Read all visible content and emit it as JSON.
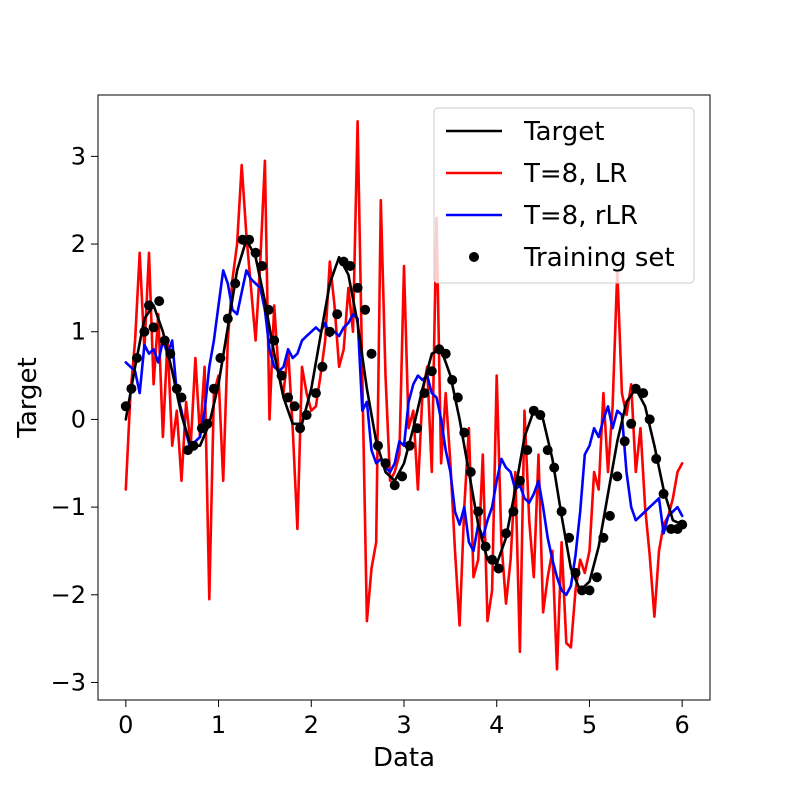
{
  "chart_data": {
    "type": "line",
    "title": "",
    "xlabel": "Data",
    "ylabel": "Target",
    "xlim": [
      -0.3,
      6.3
    ],
    "ylim": [
      -3.2,
      3.7
    ],
    "xticks": [
      0,
      1,
      2,
      3,
      4,
      5,
      6
    ],
    "yticks": [
      -3,
      -2,
      -1,
      0,
      1,
      2,
      3
    ],
    "xtick_labels": [
      "0",
      "1",
      "2",
      "3",
      "4",
      "5",
      "6"
    ],
    "ytick_labels": [
      "−3",
      "−2",
      "−1",
      "0",
      "1",
      "2",
      "3"
    ],
    "grid": false,
    "legend_position": "top-right",
    "series": [
      {
        "name": "Target",
        "kind": "line",
        "color": "#000000",
        "x": [
          0,
          0.1,
          0.2,
          0.3,
          0.4,
          0.5,
          0.6,
          0.7,
          0.8,
          0.9,
          1.0,
          1.1,
          1.2,
          1.3,
          1.4,
          1.5,
          1.6,
          1.7,
          1.8,
          1.9,
          2.0,
          2.1,
          2.2,
          2.3,
          2.4,
          2.5,
          2.6,
          2.7,
          2.8,
          2.9,
          3.0,
          3.1,
          3.2,
          3.3,
          3.4,
          3.5,
          3.6,
          3.7,
          3.8,
          3.9,
          4.0,
          4.1,
          4.2,
          4.3,
          4.4,
          4.5,
          4.6,
          4.7,
          4.8,
          4.9,
          5.0,
          5.1,
          5.2,
          5.3,
          5.4,
          5.5,
          5.6,
          5.7,
          5.8,
          5.9,
          6.0
        ],
        "y": [
          0.0,
          0.6,
          1.15,
          1.3,
          1.0,
          0.55,
          0.05,
          -0.3,
          -0.3,
          -0.05,
          0.4,
          1.05,
          1.7,
          2.05,
          1.85,
          1.35,
          0.75,
          0.25,
          -0.05,
          -0.05,
          0.35,
          0.95,
          1.55,
          1.85,
          1.65,
          1.1,
          0.35,
          -0.25,
          -0.6,
          -0.7,
          -0.5,
          -0.1,
          0.35,
          0.75,
          0.8,
          0.5,
          0.0,
          -0.6,
          -1.2,
          -1.6,
          -1.65,
          -1.35,
          -0.8,
          -0.2,
          0.1,
          0.0,
          -0.45,
          -1.1,
          -1.7,
          -1.95,
          -1.85,
          -1.45,
          -0.85,
          -0.25,
          0.2,
          0.35,
          0.15,
          -0.3,
          -0.8,
          -1.15,
          -1.2
        ]
      },
      {
        "name": "T=8, LR",
        "kind": "line",
        "color": "#ff0000",
        "x": [
          0,
          0.05,
          0.1,
          0.15,
          0.2,
          0.25,
          0.3,
          0.35,
          0.4,
          0.45,
          0.5,
          0.55,
          0.6,
          0.65,
          0.7,
          0.75,
          0.8,
          0.85,
          0.9,
          0.95,
          1.0,
          1.05,
          1.1,
          1.15,
          1.2,
          1.25,
          1.3,
          1.35,
          1.4,
          1.45,
          1.5,
          1.55,
          1.6,
          1.65,
          1.7,
          1.75,
          1.8,
          1.85,
          1.9,
          1.95,
          2.0,
          2.05,
          2.1,
          2.15,
          2.2,
          2.25,
          2.3,
          2.35,
          2.4,
          2.45,
          2.5,
          2.55,
          2.6,
          2.65,
          2.7,
          2.75,
          2.8,
          2.85,
          2.9,
          2.95,
          3.0,
          3.05,
          3.1,
          3.15,
          3.2,
          3.25,
          3.3,
          3.35,
          3.4,
          3.45,
          3.5,
          3.55,
          3.6,
          3.65,
          3.7,
          3.75,
          3.8,
          3.85,
          3.9,
          3.95,
          4.0,
          4.05,
          4.1,
          4.15,
          4.2,
          4.25,
          4.3,
          4.35,
          4.4,
          4.45,
          4.5,
          4.55,
          4.6,
          4.65,
          4.7,
          4.75,
          4.8,
          4.85,
          4.9,
          4.95,
          5.0,
          5.05,
          5.1,
          5.15,
          5.2,
          5.25,
          5.3,
          5.35,
          5.4,
          5.45,
          5.5,
          5.55,
          5.6,
          5.65,
          5.7,
          5.75,
          5.8,
          5.85,
          5.9,
          5.95,
          6.0
        ],
        "y": [
          -0.8,
          0.3,
          0.9,
          1.9,
          0.8,
          1.9,
          0.4,
          1.2,
          -0.2,
          0.9,
          -0.3,
          0.1,
          -0.7,
          0.2,
          -0.3,
          0.7,
          -0.2,
          0.6,
          -2.05,
          0.3,
          0.5,
          -0.7,
          0.9,
          1.6,
          2.0,
          2.9,
          2.1,
          1.5,
          0.9,
          1.8,
          2.95,
          0.0,
          1.3,
          0.5,
          0.3,
          0.8,
          -0.1,
          -1.25,
          0.6,
          0.3,
          0.1,
          0.15,
          0.5,
          0.9,
          1.8,
          1.3,
          0.6,
          0.8,
          1.5,
          1.0,
          3.4,
          0.5,
          -2.3,
          -1.7,
          -1.4,
          2.5,
          0.5,
          -0.7,
          -0.6,
          -0.4,
          1.75,
          -0.1,
          0.1,
          -0.8,
          0.3,
          0.6,
          -0.6,
          2.3,
          -0.5,
          0.3,
          -0.5,
          -1.5,
          -2.35,
          -1.0,
          -0.1,
          -1.8,
          -1.6,
          -0.4,
          -2.3,
          -1.95,
          0.5,
          -1.4,
          -2.1,
          -1.6,
          -0.6,
          -2.65,
          0.1,
          -1.15,
          -1.8,
          -0.4,
          -2.2,
          -1.8,
          -1.5,
          -2.85,
          -1.4,
          -2.55,
          -2.6,
          -1.95,
          -1.6,
          -1.75,
          -1.5,
          -0.6,
          -0.8,
          0.3,
          -0.6,
          0.15,
          1.7,
          0.3,
          0.05,
          0.4,
          -0.6,
          -0.1,
          -1.0,
          -1.55,
          -2.25,
          -1.5,
          -1.2,
          -1.1,
          -0.9,
          -0.6,
          -0.5
        ]
      },
      {
        "name": "T=8, rLR",
        "kind": "line",
        "color": "#0000ff",
        "x": [
          0,
          0.05,
          0.1,
          0.15,
          0.2,
          0.25,
          0.3,
          0.35,
          0.4,
          0.45,
          0.5,
          0.55,
          0.6,
          0.65,
          0.7,
          0.75,
          0.8,
          0.85,
          0.9,
          0.95,
          1.0,
          1.05,
          1.1,
          1.15,
          1.2,
          1.25,
          1.3,
          1.35,
          1.4,
          1.45,
          1.5,
          1.55,
          1.6,
          1.65,
          1.7,
          1.75,
          1.8,
          1.85,
          1.9,
          1.95,
          2.0,
          2.05,
          2.1,
          2.15,
          2.2,
          2.25,
          2.3,
          2.35,
          2.4,
          2.45,
          2.5,
          2.55,
          2.6,
          2.65,
          2.7,
          2.75,
          2.8,
          2.85,
          2.9,
          2.95,
          3.0,
          3.05,
          3.1,
          3.15,
          3.2,
          3.25,
          3.3,
          3.35,
          3.4,
          3.45,
          3.5,
          3.55,
          3.6,
          3.65,
          3.7,
          3.75,
          3.8,
          3.85,
          3.9,
          3.95,
          4.0,
          4.05,
          4.1,
          4.15,
          4.2,
          4.25,
          4.3,
          4.35,
          4.4,
          4.45,
          4.5,
          4.55,
          4.6,
          4.65,
          4.7,
          4.75,
          4.8,
          4.85,
          4.9,
          4.95,
          5.0,
          5.05,
          5.1,
          5.15,
          5.2,
          5.25,
          5.3,
          5.35,
          5.4,
          5.45,
          5.5,
          5.55,
          5.6,
          5.65,
          5.7,
          5.75,
          5.8,
          5.85,
          5.9,
          5.95,
          6.0
        ],
        "y": [
          0.65,
          0.6,
          0.55,
          0.3,
          0.85,
          0.75,
          0.8,
          0.65,
          0.9,
          0.75,
          0.9,
          0.3,
          0.1,
          -0.15,
          -0.35,
          -0.25,
          -0.2,
          0.1,
          0.6,
          0.9,
          1.3,
          1.7,
          1.55,
          1.25,
          1.2,
          1.45,
          1.7,
          1.6,
          1.55,
          1.5,
          1.25,
          0.8,
          0.6,
          0.55,
          0.6,
          0.8,
          0.7,
          0.75,
          0.9,
          0.95,
          1.0,
          1.05,
          1.0,
          1.1,
          0.95,
          1.0,
          0.95,
          1.05,
          1.1,
          1.2,
          1.15,
          0.1,
          0.2,
          -0.35,
          -0.5,
          -0.45,
          -0.55,
          -0.6,
          -0.5,
          -0.25,
          -0.3,
          0.2,
          0.4,
          0.5,
          0.45,
          0.5,
          0.3,
          0.25,
          0.0,
          -0.35,
          -0.6,
          -1.05,
          -1.2,
          -1.0,
          -1.4,
          -1.5,
          -1.2,
          -1.35,
          -1.15,
          -1.0,
          -0.7,
          -0.45,
          -0.55,
          -0.6,
          -0.8,
          -0.75,
          -0.9,
          -0.95,
          -0.85,
          -0.7,
          -1.0,
          -1.35,
          -1.6,
          -1.8,
          -1.95,
          -2.0,
          -1.9,
          -1.55,
          -1.05,
          -0.4,
          -0.3,
          -0.1,
          -0.2,
          0.0,
          0.15,
          -0.1,
          0.1,
          0.05,
          -0.6,
          -1.0,
          -1.15,
          -1.1,
          -1.05,
          -1.0,
          -0.95,
          -0.9,
          -1.3,
          -1.1,
          -1.05,
          -1.0,
          -1.1
        ]
      }
    ],
    "scatter": {
      "name": "Training set",
      "color": "#000000",
      "x": [
        0.0,
        0.06,
        0.12,
        0.2,
        0.25,
        0.3,
        0.36,
        0.42,
        0.48,
        0.55,
        0.6,
        0.67,
        0.73,
        0.82,
        0.88,
        0.95,
        1.02,
        1.1,
        1.18,
        1.26,
        1.33,
        1.4,
        1.47,
        1.54,
        1.6,
        1.68,
        1.75,
        1.82,
        1.88,
        1.95,
        2.05,
        2.12,
        2.2,
        2.28,
        2.35,
        2.42,
        2.5,
        2.58,
        2.65,
        2.72,
        2.8,
        2.9,
        2.98,
        3.06,
        3.14,
        3.22,
        3.3,
        3.38,
        3.45,
        3.52,
        3.58,
        3.65,
        3.72,
        3.8,
        3.88,
        3.95,
        4.02,
        4.1,
        4.18,
        4.25,
        4.33,
        4.4,
        4.47,
        4.55,
        4.62,
        4.7,
        4.78,
        4.85,
        4.92,
        5.0,
        5.08,
        5.15,
        5.22,
        5.3,
        5.38,
        5.45,
        5.5,
        5.58,
        5.65,
        5.72,
        5.8,
        5.88,
        5.95,
        6.0
      ],
      "y": [
        0.15,
        0.35,
        0.7,
        1.0,
        1.3,
        1.05,
        1.35,
        0.9,
        0.75,
        0.35,
        0.25,
        -0.35,
        -0.3,
        -0.1,
        -0.05,
        0.35,
        0.7,
        1.15,
        1.55,
        2.05,
        2.05,
        1.9,
        1.75,
        1.25,
        0.9,
        0.5,
        0.25,
        0.15,
        -0.1,
        0.05,
        0.3,
        0.6,
        1.0,
        1.2,
        1.8,
        1.75,
        1.5,
        1.25,
        0.75,
        -0.3,
        -0.5,
        -0.75,
        -0.65,
        -0.3,
        -0.1,
        0.3,
        0.55,
        0.8,
        0.75,
        0.45,
        0.25,
        -0.15,
        -0.6,
        -1.05,
        -1.45,
        -1.6,
        -1.7,
        -1.3,
        -1.05,
        -0.7,
        -0.35,
        0.1,
        0.05,
        -0.35,
        -0.55,
        -1.05,
        -1.35,
        -1.75,
        -1.95,
        -1.95,
        -1.8,
        -1.35,
        -1.1,
        -0.65,
        -0.25,
        -0.05,
        0.35,
        0.3,
        0.0,
        -0.45,
        -0.85,
        -1.25,
        -1.25,
        -1.2
      ]
    }
  }
}
